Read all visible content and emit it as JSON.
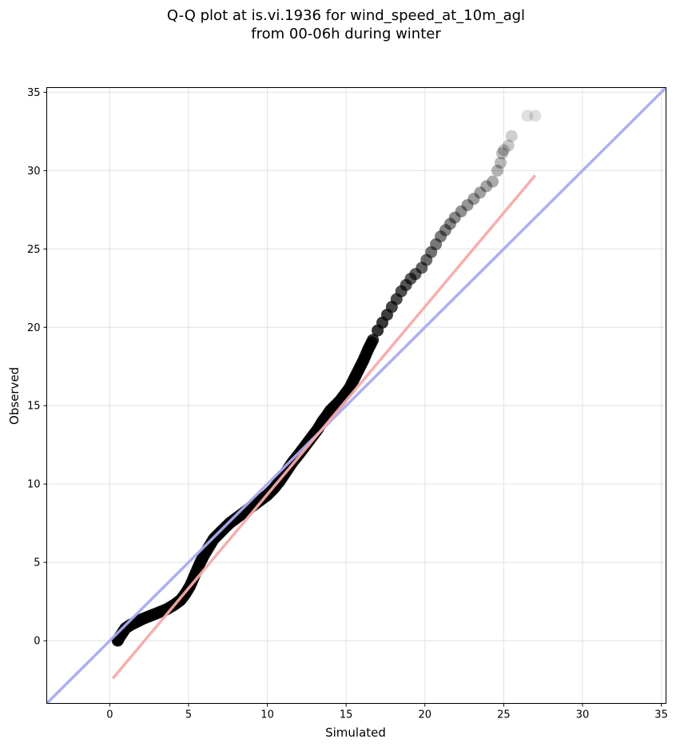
{
  "chart_data": {
    "type": "scatter",
    "title_lines": [
      "Q-Q plot at is.vi.1936 for wind_speed_at_10m_agl",
      "from 00-06h during winter"
    ],
    "xlabel": "Simulated",
    "ylabel": "Observed",
    "xlim": [
      -4,
      35.3
    ],
    "ylim": [
      -4,
      35.3
    ],
    "xticks": [
      0,
      5,
      10,
      15,
      20,
      25,
      30,
      35
    ],
    "yticks": [
      0,
      5,
      10,
      15,
      20,
      25,
      30,
      35
    ],
    "grid": true,
    "colors": {
      "points": "#000000",
      "reference_line": "#aaaaf0",
      "fit_line": "#f7aaaa"
    },
    "reference_line": {
      "x": [
        -4,
        35.3
      ],
      "y": [
        -4,
        35.3
      ]
    },
    "fit_line": {
      "x": [
        0.2,
        27.0
      ],
      "y": [
        -2.4,
        29.7
      ]
    },
    "series": [
      {
        "x": [
          0.5,
          0.6,
          0.8,
          1.0,
          1.3,
          1.7,
          2.1,
          2.6,
          3.1,
          3.6,
          4.1,
          4.5,
          4.8,
          5.1,
          5.4,
          5.7,
          6.0,
          6.3,
          6.6,
          6.9,
          7.2,
          7.6,
          8.0,
          8.4,
          8.8,
          9.2,
          9.6,
          10.0,
          10.4,
          10.8,
          11.2,
          11.6,
          12.0,
          12.3,
          12.6,
          12.9,
          13.2,
          13.5,
          13.8,
          14.0,
          14.3,
          14.6,
          14.9,
          15.2,
          15.5,
          15.8,
          16.1,
          16.4,
          16.7,
          17.0,
          17.3,
          17.6,
          17.9,
          18.2,
          18.5,
          18.8,
          19.1,
          19.4,
          19.8,
          20.1,
          20.4,
          20.7,
          21.0,
          21.3,
          21.6,
          21.9,
          22.3,
          22.7,
          23.1,
          23.5,
          23.9,
          24.3,
          24.6,
          24.8,
          24.9,
          25.0,
          25.3,
          25.5,
          26.5,
          27.0
        ],
        "y": [
          0.0,
          0.2,
          0.5,
          0.8,
          1.0,
          1.2,
          1.4,
          1.6,
          1.8,
          2.0,
          2.3,
          2.6,
          3.0,
          3.5,
          4.2,
          4.9,
          5.5,
          6.0,
          6.5,
          6.8,
          7.1,
          7.5,
          7.8,
          8.1,
          8.4,
          8.7,
          9.0,
          9.3,
          9.7,
          10.2,
          10.8,
          11.4,
          11.9,
          12.3,
          12.7,
          13.1,
          13.5,
          14.0,
          14.4,
          14.7,
          15.0,
          15.3,
          15.7,
          16.1,
          16.7,
          17.3,
          17.9,
          18.6,
          19.2,
          19.8,
          20.3,
          20.8,
          21.3,
          21.8,
          22.3,
          22.7,
          23.1,
          23.4,
          23.8,
          24.3,
          24.8,
          25.3,
          25.8,
          26.2,
          26.6,
          27.0,
          27.4,
          27.8,
          28.2,
          28.6,
          29.0,
          29.3,
          30.0,
          30.5,
          31.1,
          31.3,
          31.6,
          32.2,
          33.5,
          33.5
        ]
      }
    ]
  }
}
